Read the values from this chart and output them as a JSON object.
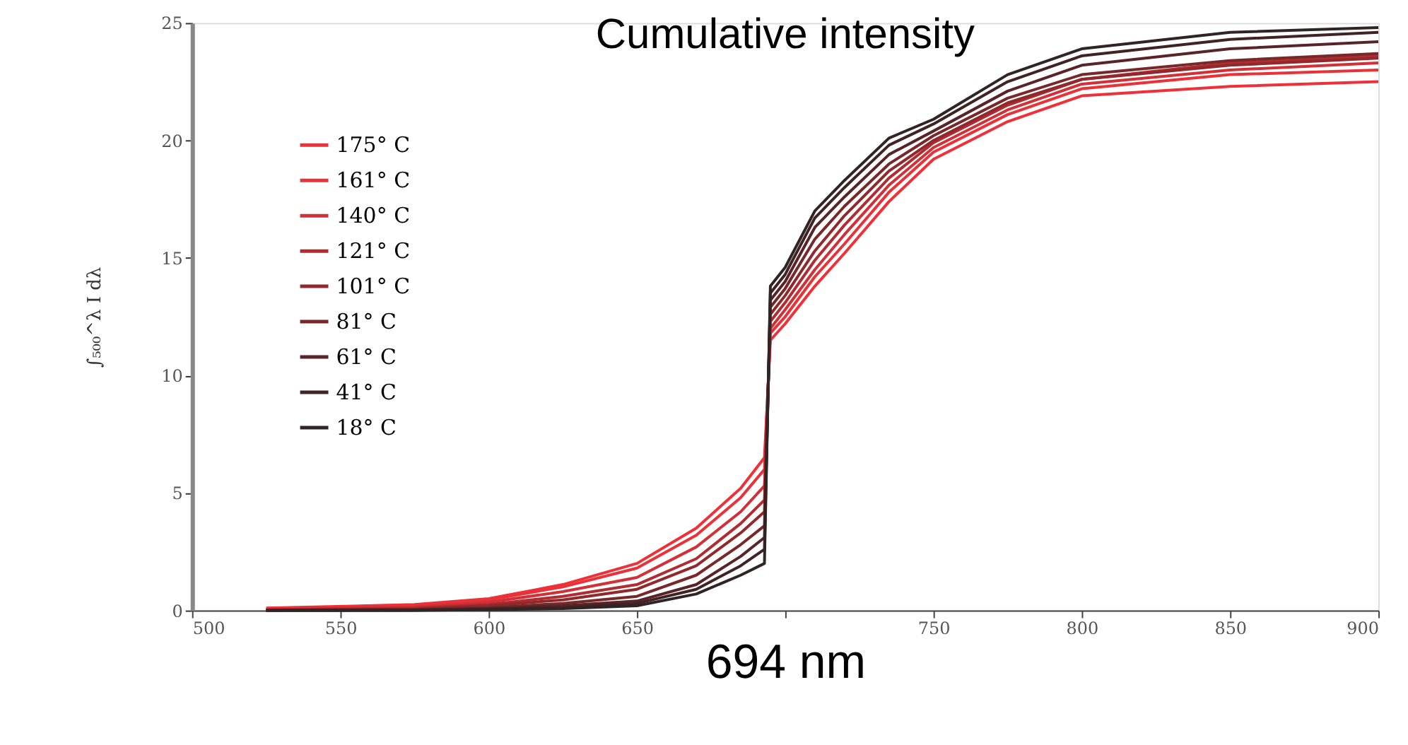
{
  "chart_data": {
    "type": "line",
    "title": "Cumulative intensity",
    "xlabel": "694 nm",
    "ylabel": "∫₅₀₀^λ I dλ",
    "x": [
      525,
      575,
      600,
      625,
      650,
      670,
      685,
      693,
      695,
      700,
      710,
      720,
      735,
      750,
      775,
      800,
      850,
      900
    ],
    "series": [
      {
        "name": "175° C",
        "color": "#f03038",
        "values": [
          0.1,
          0.25,
          0.5,
          1.1,
          2.0,
          3.5,
          5.2,
          6.5,
          11.5,
          12.2,
          13.8,
          15.2,
          17.4,
          19.2,
          20.8,
          21.9,
          22.3,
          22.5
        ]
      },
      {
        "name": "161° C",
        "color": "#e83238",
        "values": [
          0.05,
          0.2,
          0.45,
          1.0,
          1.8,
          3.2,
          4.8,
          6.0,
          11.8,
          12.5,
          14.2,
          15.6,
          17.8,
          19.5,
          21.1,
          22.2,
          22.8,
          23.0
        ]
      },
      {
        "name": "140° C",
        "color": "#d03036",
        "values": [
          0.03,
          0.15,
          0.35,
          0.8,
          1.4,
          2.7,
          4.2,
          5.3,
          12.0,
          12.8,
          14.5,
          16.0,
          18.1,
          19.7,
          21.3,
          22.4,
          23.0,
          23.3
        ]
      },
      {
        "name": "121° C",
        "color": "#b02c30",
        "values": [
          0.02,
          0.1,
          0.25,
          0.6,
          1.1,
          2.2,
          3.7,
          4.7,
          12.3,
          13.1,
          14.9,
          16.4,
          18.4,
          19.9,
          21.5,
          22.6,
          23.3,
          23.6
        ]
      },
      {
        "name": "101° C",
        "color": "#90282c",
        "values": [
          0.01,
          0.06,
          0.2,
          0.45,
          0.9,
          1.9,
          3.3,
          4.2,
          12.6,
          13.4,
          15.3,
          16.8,
          18.7,
          20.0,
          21.6,
          22.6,
          23.2,
          23.5
        ]
      },
      {
        "name": "81° C",
        "color": "#782828",
        "values": [
          0,
          0.04,
          0.12,
          0.3,
          0.6,
          1.5,
          2.8,
          3.6,
          12.9,
          13.7,
          15.8,
          17.2,
          19.0,
          20.2,
          21.8,
          22.8,
          23.4,
          23.7
        ]
      },
      {
        "name": "61° C",
        "color": "#582428",
        "values": [
          0,
          0.02,
          0.08,
          0.2,
          0.4,
          1.1,
          2.3,
          3.1,
          13.2,
          14.0,
          16.3,
          17.6,
          19.4,
          20.4,
          22.1,
          23.2,
          23.9,
          24.2
        ]
      },
      {
        "name": "41° C",
        "color": "#402424",
        "values": [
          0,
          0.01,
          0.05,
          0.12,
          0.3,
          0.9,
          1.9,
          2.6,
          13.5,
          14.3,
          16.7,
          18.0,
          19.8,
          20.7,
          22.5,
          23.6,
          24.3,
          24.6
        ]
      },
      {
        "name": "18° C",
        "color": "#302424",
        "values": [
          0,
          0,
          0.03,
          0.08,
          0.2,
          0.7,
          1.5,
          2.0,
          13.8,
          14.6,
          17.0,
          18.3,
          20.1,
          20.9,
          22.8,
          23.9,
          24.6,
          24.8
        ]
      }
    ],
    "xlim": [
      500,
      900
    ],
    "xticks": [
      500,
      550,
      600,
      650,
      {
        "value": 700,
        "label": null
      },
      750,
      800,
      850,
      900
    ],
    "ylim": [
      0,
      25
    ],
    "yticks": [
      0,
      5,
      10,
      15,
      20,
      25
    ],
    "grid": false,
    "legend": "top left",
    "marker": "none",
    "line_style": "solid"
  }
}
